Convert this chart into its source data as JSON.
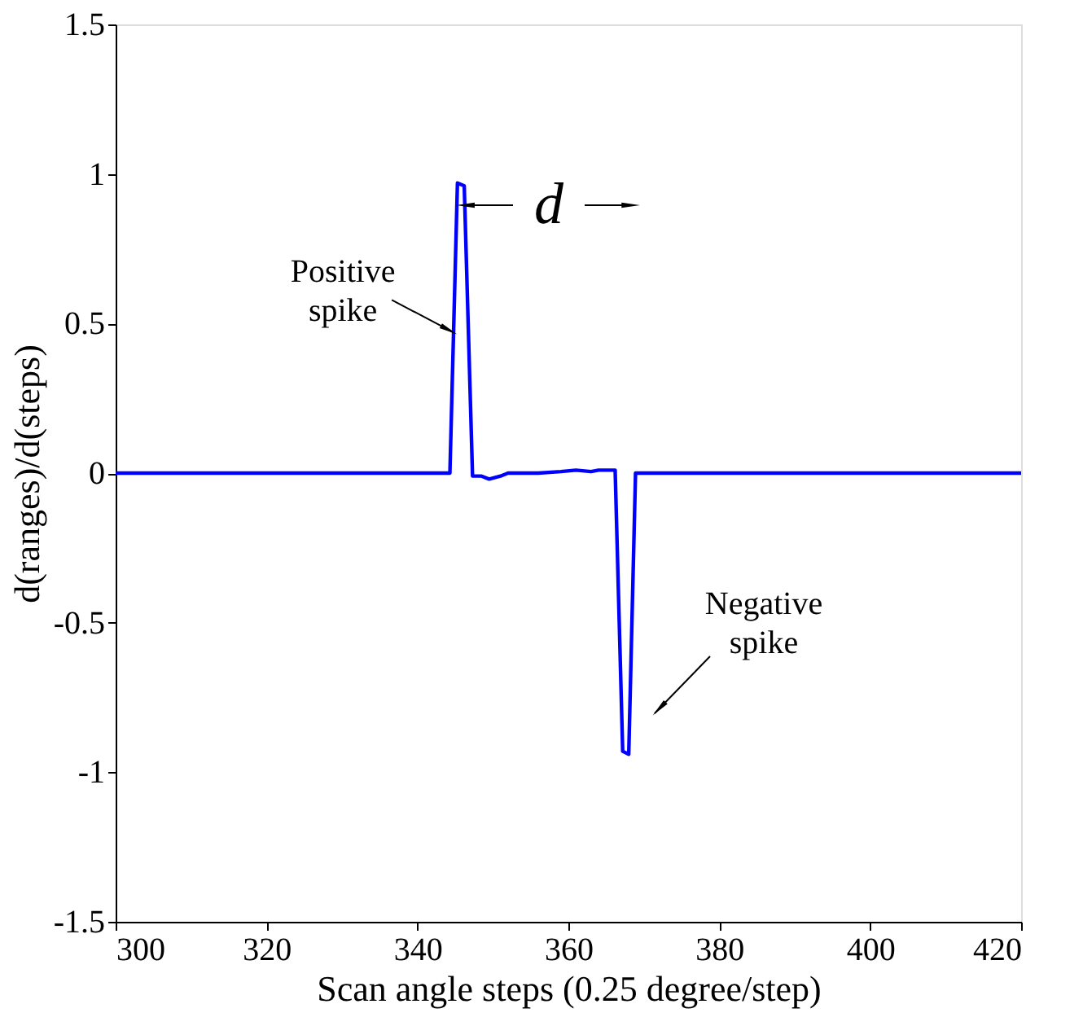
{
  "chart_data": {
    "type": "line",
    "xlabel": "Scan angle steps (0.25 degree/step)",
    "ylabel": "d(ranges)/d(steps)",
    "x": [
      300,
      344.3,
      345.3,
      346.2,
      347.3,
      348.5,
      349.5,
      351,
      352,
      356,
      359,
      361,
      363,
      364,
      366,
      366.2,
      367.2,
      368,
      368.9,
      420
    ],
    "series": [
      {
        "color": "#0000ff",
        "values": [
          0,
          0,
          0.97,
          0.96,
          -0.01,
          -0.01,
          -0.02,
          -0.01,
          0,
          0,
          0.005,
          0.01,
          0.005,
          0.01,
          0.01,
          0.01,
          -0.93,
          -0.94,
          0,
          0
        ]
      }
    ],
    "xlim": [
      300,
      420
    ],
    "xticks": [
      300,
      320,
      340,
      360,
      380,
      400,
      420
    ],
    "ylim": [
      -1.5,
      1.5
    ],
    "yticks": [
      -1.5,
      -1,
      -0.5,
      0,
      0.5,
      1,
      1.5
    ],
    "annotations": [
      {
        "text": "Positive spike",
        "x": 344.8,
        "y": 0.47
      },
      "Negative spike",
      "d"
    ],
    "grid": false,
    "marker": "none",
    "line_style": "solid"
  }
}
